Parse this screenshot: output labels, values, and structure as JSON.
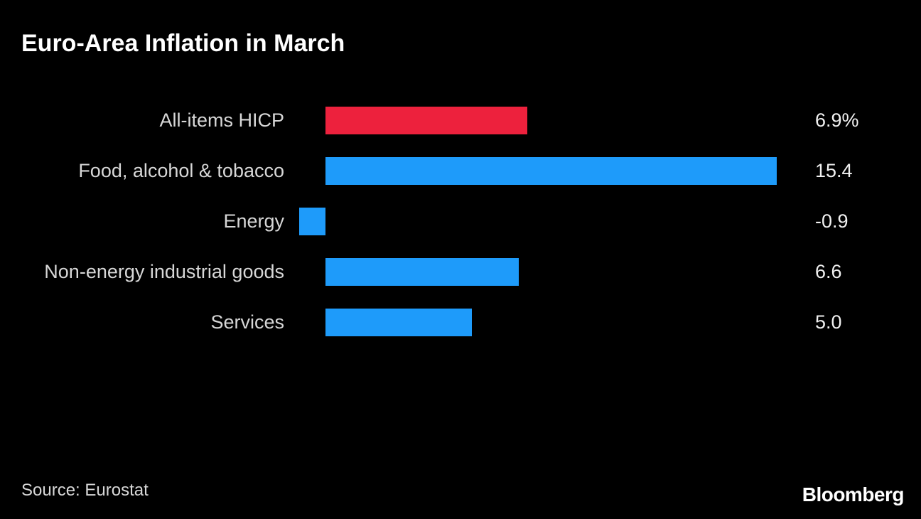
{
  "chart_data": {
    "type": "bar",
    "orientation": "horizontal",
    "title": "Euro-Area Inflation in March",
    "categories": [
      "All-items HICP",
      "Food, alcohol & tobacco",
      "Energy",
      "Non-energy industrial goods",
      "Services"
    ],
    "values": [
      6.9,
      15.4,
      -0.9,
      6.6,
      5.0
    ],
    "value_labels": [
      "6.9%",
      "15.4",
      "-0.9",
      "6.6",
      "5.0"
    ],
    "bar_colors": [
      "#ed213d",
      "#1e9bfa",
      "#1e9bfa",
      "#1e9bfa",
      "#1e9bfa"
    ],
    "unit": "%",
    "baseline": 0,
    "xlim": [
      -0.9,
      15.4
    ],
    "grid": false,
    "legend": false
  },
  "colors": {
    "background": "#000000",
    "title_text": "#ffffff",
    "category_text": "#d7d7d7",
    "value_text": "#f1f1f1",
    "highlight_bar": "#ed213d",
    "default_bar": "#1e9bfa"
  },
  "footer": {
    "source": "Source: Eurostat",
    "logo": "Bloomberg"
  }
}
